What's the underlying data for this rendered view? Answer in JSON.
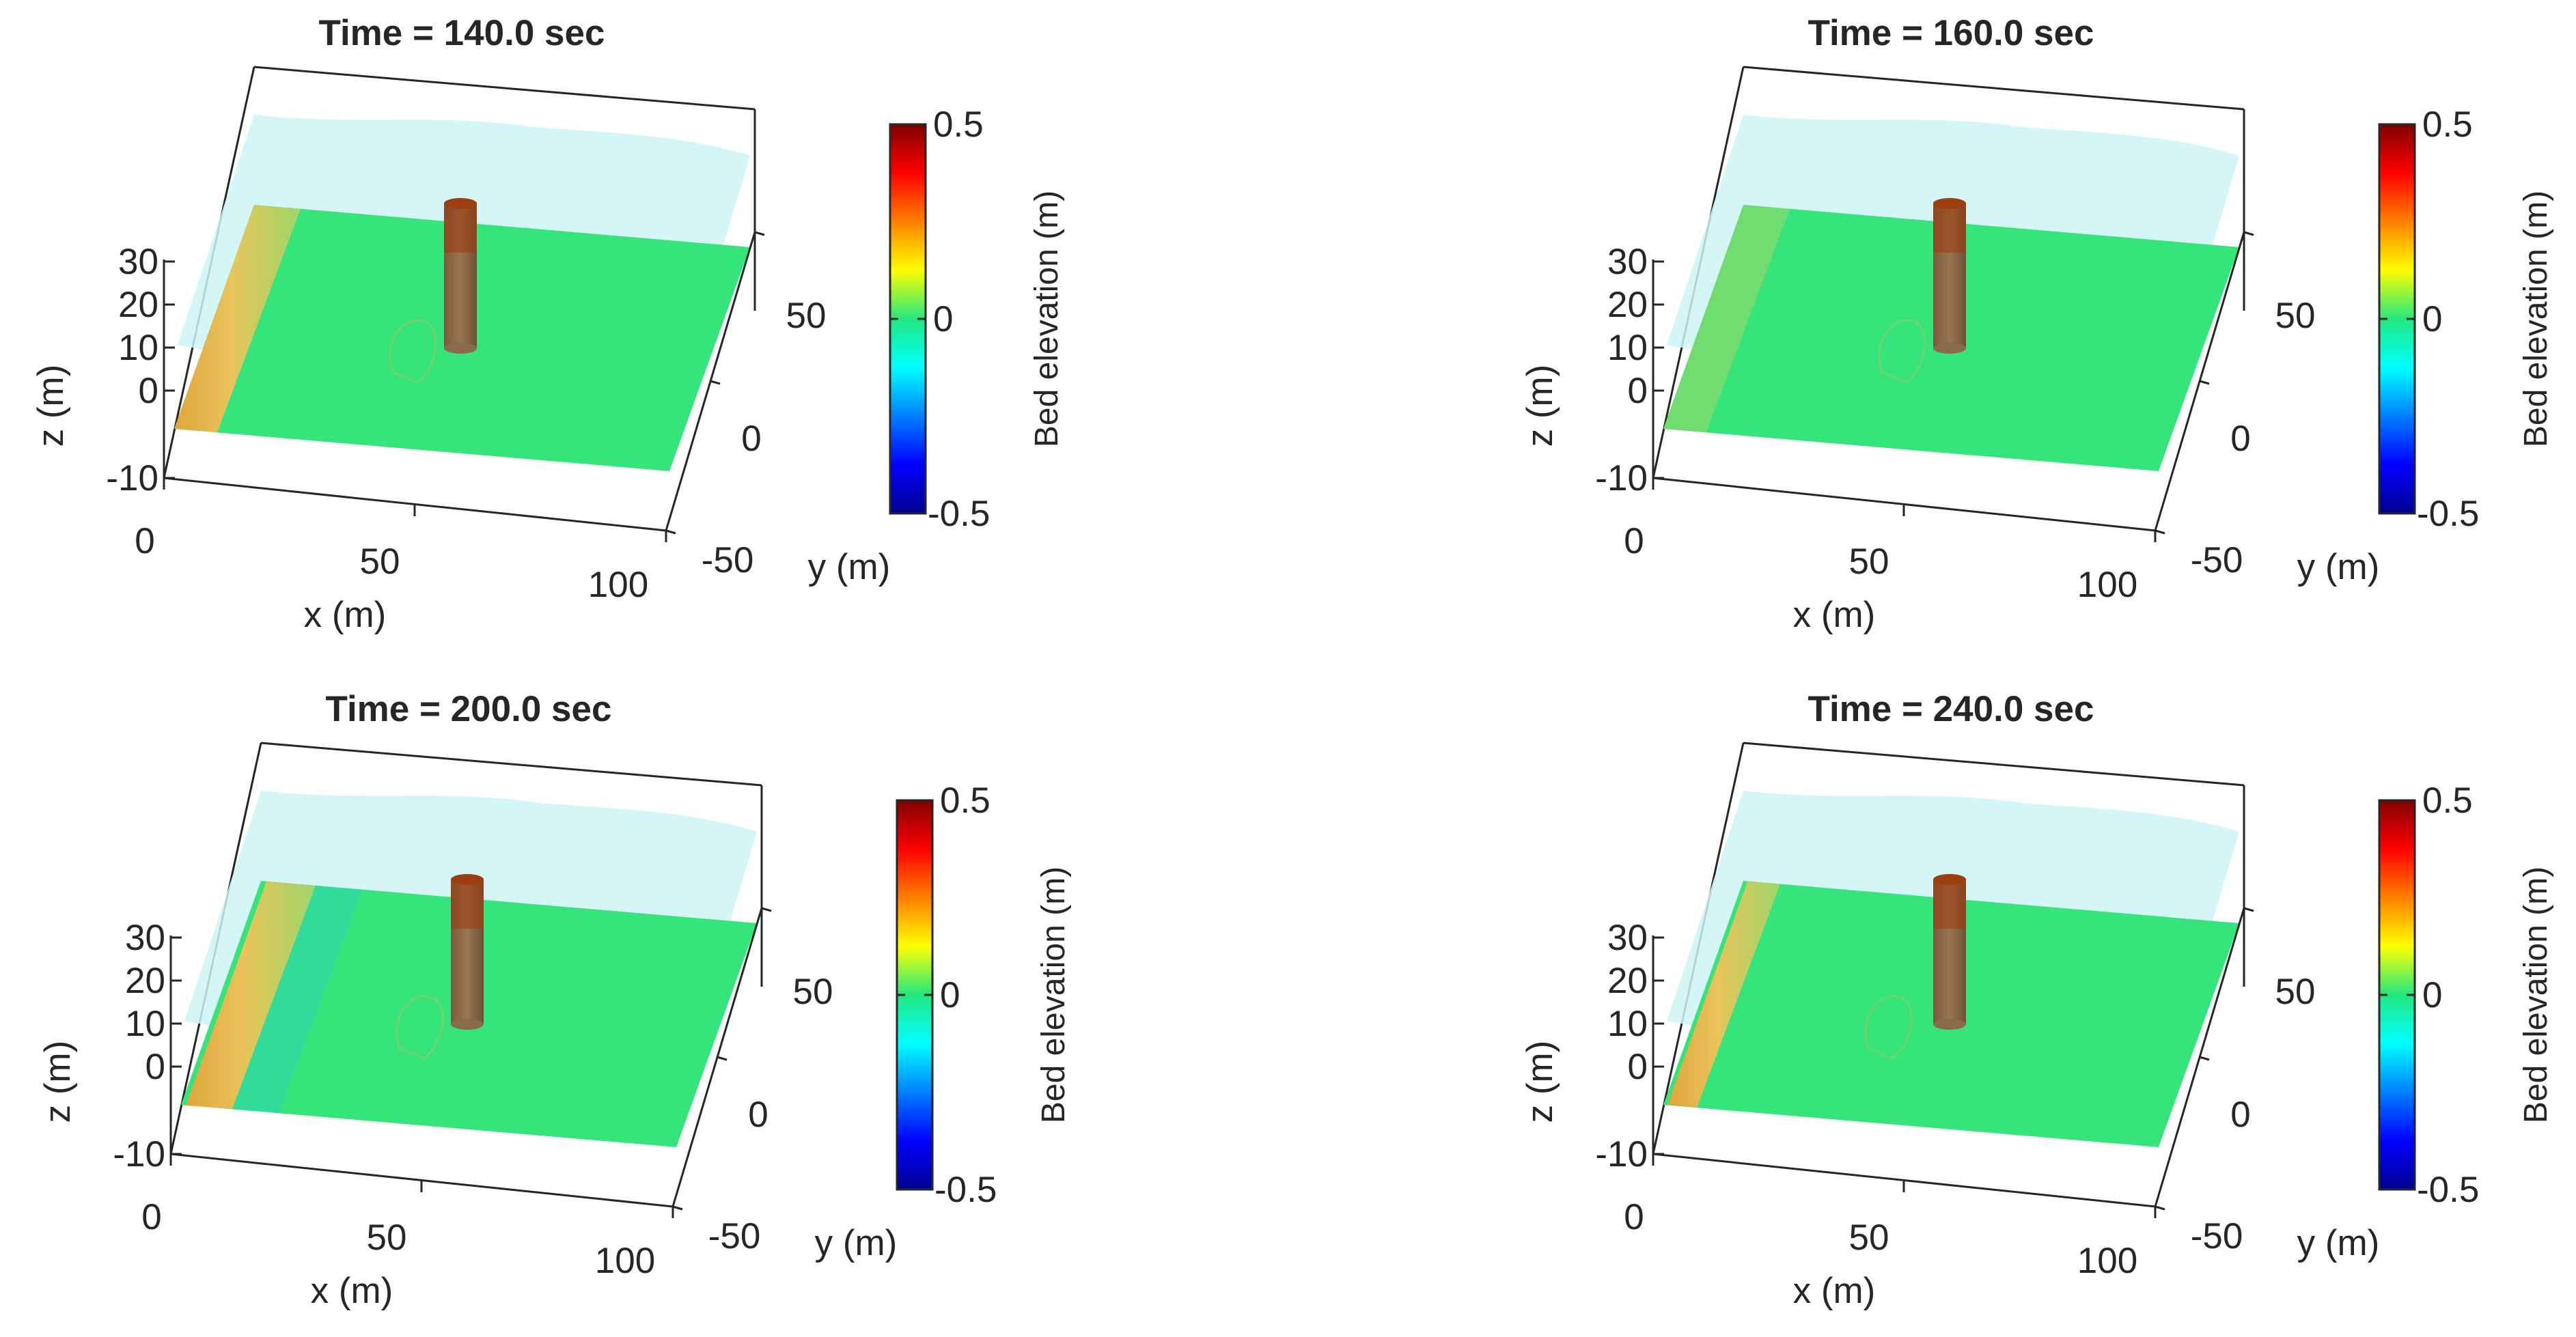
{
  "figure": {
    "colorbar_label": "Bed elevation (m)",
    "x_label": "x (m)",
    "y_label": "y (m)",
    "z_label": "z (m)"
  },
  "colors": {
    "surface": "#36e47c",
    "water": "#cdf4f4",
    "pile": "#8a6a4c",
    "pile_top": "#9c3e10",
    "ridge": "#e6b148",
    "axes": "#262626"
  },
  "chart_data": [
    {
      "type": "surface3d",
      "title": "Time = 140.0 sec",
      "xlabel": "x (m)",
      "ylabel": "y (m)",
      "zlabel": "z (m)",
      "xlim": [
        0,
        100
      ],
      "ylim": [
        -50,
        50
      ],
      "zlim": [
        -10,
        30
      ],
      "xticks": [
        "0",
        "50",
        "100"
      ],
      "yticks": [
        "-50",
        "0",
        "50"
      ],
      "zticks": [
        "-10",
        "0",
        "10",
        "20",
        "30"
      ],
      "colorbar": {
        "label": "Bed elevation (m)",
        "clim": [
          -0.5,
          0.5
        ],
        "ticks": [
          "-0.5",
          "0",
          "0.5"
        ]
      },
      "bed_features": {
        "ridge_x": 7,
        "ridge_elevation": 0.3,
        "scour_elevation": -0.1,
        "pile_x": 55,
        "pile_y": 5
      }
    },
    {
      "type": "surface3d",
      "title": "Time = 160.0 sec",
      "xlabel": "x (m)",
      "ylabel": "y (m)",
      "zlabel": "z (m)",
      "xlim": [
        0,
        100
      ],
      "ylim": [
        -50,
        50
      ],
      "zlim": [
        -10,
        30
      ],
      "xticks": [
        "0",
        "50",
        "100"
      ],
      "yticks": [
        "-50",
        "0",
        "50"
      ],
      "zticks": [
        "-10",
        "0",
        "10",
        "20",
        "30"
      ],
      "colorbar": {
        "label": "Bed elevation (m)",
        "clim": [
          -0.5,
          0.5
        ],
        "ticks": [
          "-0.5",
          "0",
          "0.5"
        ]
      },
      "bed_features": {
        "ridge_x": 10,
        "ridge_elevation": 0.12,
        "scour_elevation": -0.05,
        "pile_x": 55,
        "pile_y": 5
      }
    },
    {
      "type": "surface3d",
      "title": "Time = 200.0 sec",
      "xlabel": "x (m)",
      "ylabel": "y (m)",
      "zlabel": "z (m)",
      "xlim": [
        0,
        100
      ],
      "ylim": [
        -50,
        50
      ],
      "zlim": [
        -10,
        30
      ],
      "xticks": [
        "0",
        "50",
        "100"
      ],
      "yticks": [
        "-50",
        "0",
        "50"
      ],
      "zticks": [
        "-10",
        "0",
        "10",
        "20",
        "30"
      ],
      "colorbar": {
        "label": "Bed elevation (m)",
        "clim": [
          -0.5,
          0.5
        ],
        "ticks": [
          "-0.5",
          "0",
          "0.5"
        ]
      },
      "bed_features": {
        "ridge_x": 12,
        "ridge_elevation": 0.3,
        "scour_elevation": -0.15,
        "pile_x": 55,
        "pile_y": 5
      }
    },
    {
      "type": "surface3d",
      "title": "Time = 240.0 sec",
      "xlabel": "x (m)",
      "ylabel": "y (m)",
      "zlabel": "z (m)",
      "xlim": [
        0,
        100
      ],
      "ylim": [
        -50,
        50
      ],
      "zlim": [
        -10,
        30
      ],
      "xticks": [
        "0",
        "50",
        "100"
      ],
      "yticks": [
        "-50",
        "0",
        "50"
      ],
      "zticks": [
        "-10",
        "0",
        "10",
        "20",
        "30"
      ],
      "colorbar": {
        "label": "Bed elevation (m)",
        "clim": [
          -0.5,
          0.5
        ],
        "ticks": [
          "-0.5",
          "0",
          "0.5"
        ]
      },
      "bed_features": {
        "ridge_x": 8,
        "ridge_elevation": 0.25,
        "scour_elevation": -0.05,
        "pile_x": 55,
        "pile_y": 5
      }
    }
  ]
}
